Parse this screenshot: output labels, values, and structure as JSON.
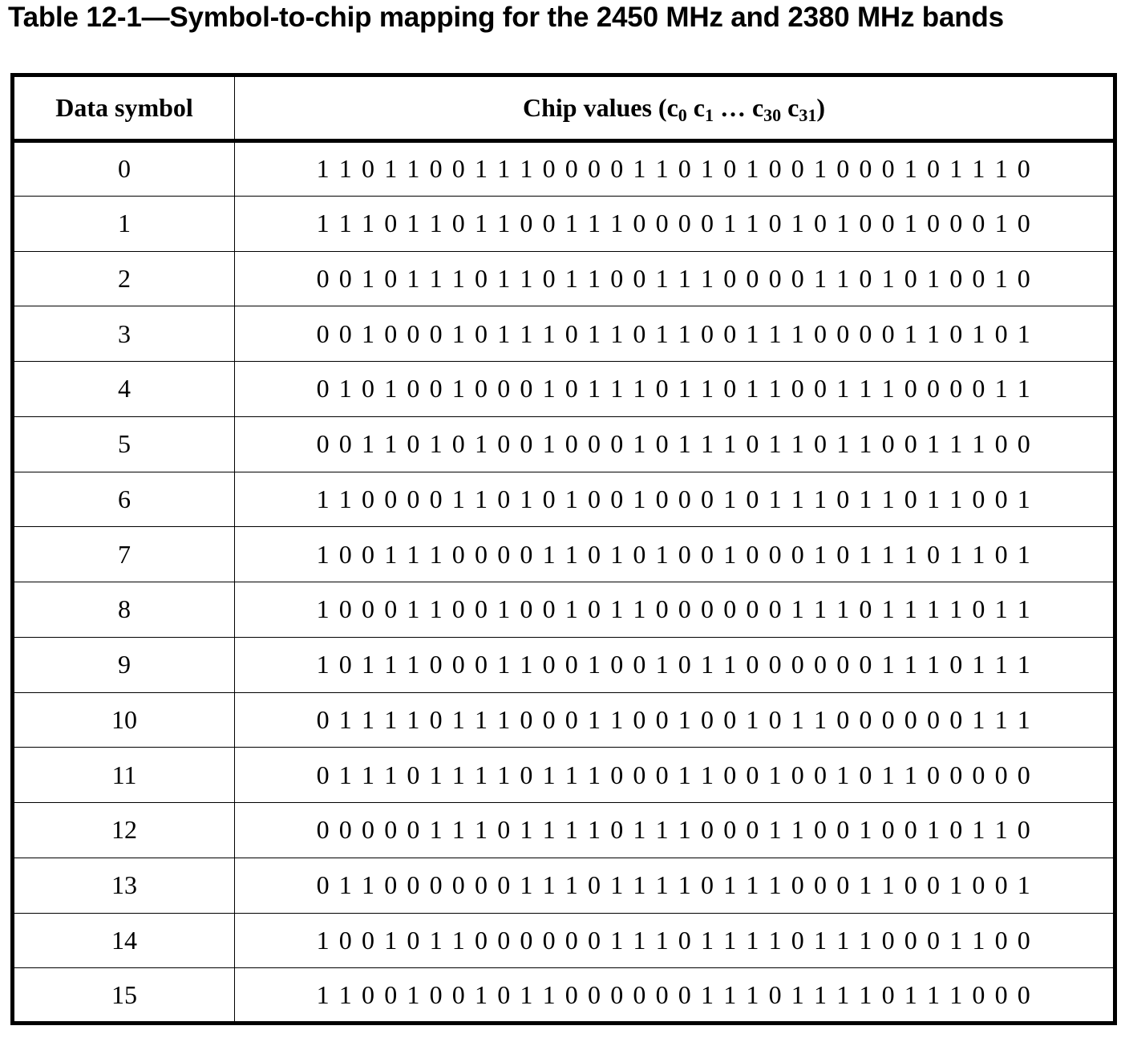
{
  "title": "Table 12-1—Symbol-to-chip mapping for the 2450 MHz and 2380 MHz bands",
  "headers": {
    "symbol": "Data symbol",
    "chip_prefix": "Chip values (c",
    "sub0": "0",
    "c1": " c",
    "sub1": "1",
    "dots": " … c",
    "sub30": "30",
    "c31": " c",
    "sub31": "31",
    "close": ")"
  },
  "rows": [
    {
      "symbol": "0",
      "chips": "1 1 0 1 1 0 0 1 1 1 0 0 0 0 1 1 0 1 0 1 0 0 1 0 0 0 1 0 1 1 1 0"
    },
    {
      "symbol": "1",
      "chips": "1 1 1 0 1 1 0 1 1 0 0 1 1 1 0 0 0 0 1 1 0 1 0 1 0 0 1 0 0 0 1 0"
    },
    {
      "symbol": "2",
      "chips": "0 0 1 0 1 1 1 0 1 1 0 1 1 0 0 1 1 1 0 0 0 0 1 1 0 1 0 1 0 0 1 0"
    },
    {
      "symbol": "3",
      "chips": "0 0 1 0 0 0 1 0 1 1 1 0 1 1 0 1 1 0 0 1 1 1 0 0 0 0 1 1 0 1 0 1"
    },
    {
      "symbol": "4",
      "chips": "0 1 0 1 0 0 1 0 0 0 1 0 1 1 1 0 1 1 0 1 1 0 0 1 1 1 0 0 0 0 1 1"
    },
    {
      "symbol": "5",
      "chips": "0 0 1 1 0 1 0 1 0 0 1 0 0 0 1 0 1 1 1 0 1 1 0 1 1 0 0 1 1 1 0 0"
    },
    {
      "symbol": "6",
      "chips": "1 1 0 0 0 0 1 1 0 1 0 1 0 0 1 0 0 0 1 0 1 1 1 0 1 1 0 1 1 0 0 1"
    },
    {
      "symbol": "7",
      "chips": "1 0 0 1 1 1 0 0 0 0 1 1 0 1 0 1 0 0 1 0 0 0 1 0 1 1 1 0 1 1 0 1"
    },
    {
      "symbol": "8",
      "chips": "1 0 0 0 1 1 0 0 1 0 0 1 0 1 1 0 0 0 0 0 0 1 1 1 0 1 1 1 1 0 1 1"
    },
    {
      "symbol": "9",
      "chips": "1 0 1 1 1 0 0 0 1 1 0 0 1 0 0 1 0 1 1 0 0 0 0 0 0 1 1 1 0 1 1 1"
    },
    {
      "symbol": "10",
      "chips": "0 1 1 1 1 0 1 1 1 0 0 0 1 1 0 0 1 0 0 1 0 1 1 0 0 0 0 0 0 1 1 1"
    },
    {
      "symbol": "11",
      "chips": "0 1 1 1 0 1 1 1 1 0 1 1 1 0 0 0 1 1 0 0 1 0 0 1 0 1 1 0 0 0 0 0"
    },
    {
      "symbol": "12",
      "chips": "0 0 0 0 0 1 1 1 0 1 1 1 1 0 1 1 1 0 0 0 1 1 0 0 1 0 0 1 0 1 1 0"
    },
    {
      "symbol": "13",
      "chips": "0 1 1 0 0 0 0 0 0 1 1 1 0 1 1 1 1 0 1 1 1 0 0 0 1 1 0 0 1 0 0 1"
    },
    {
      "symbol": "14",
      "chips": "1 0 0 1 0 1 1 0 0 0 0 0 0 1 1 1 0 1 1 1 1 0 1 1 1 0 0 0 1 1 0 0"
    },
    {
      "symbol": "15",
      "chips": "1 1 0 0 1 0 0 1 0 1 1 0 0 0 0 0 0 1 1 1 0 1 1 1 1 0 1 1 1 0 0 0"
    }
  ]
}
